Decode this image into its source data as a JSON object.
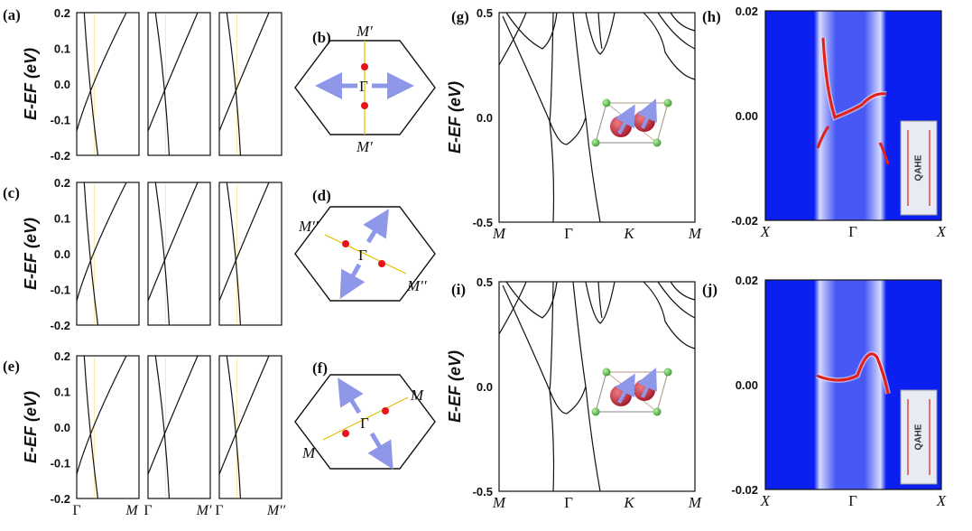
{
  "panel_labels": [
    "(a)",
    "(b)",
    "(c)",
    "(d)",
    "(e)",
    "(f)",
    "(g)",
    "(h)",
    "(i)",
    "(j)"
  ],
  "colors": {
    "band": "#111111",
    "bz_arrow": "#8f98e8",
    "weyl_point": "#e8121b",
    "kpath": "#e0c000",
    "surface_bg": "#0b1ff0",
    "edge_state": "#e0201a",
    "atom_red": "#c22535",
    "atom_green": "#5ec84a"
  },
  "brillouin_zones": [
    {
      "panel": "(b)",
      "center_label": "Γ",
      "k_labels": [
        "M′",
        "M′"
      ]
    },
    {
      "panel": "(d)",
      "center_label": "Γ",
      "k_labels": [
        "M′′",
        "M′′"
      ]
    },
    {
      "panel": "(f)",
      "center_label": "Γ",
      "k_labels": [
        "M",
        "M"
      ]
    }
  ],
  "surface_legend": {
    "text": "QAHE"
  },
  "chart_data": [
    {
      "type": "line",
      "panel": "(a)",
      "ylabel": "E-EF (eV)",
      "ylim": [
        -0.2,
        0.2
      ],
      "yticks": [
        "0.2",
        "0.1",
        "0.0",
        "-0.1",
        "-0.2"
      ],
      "xticks": [],
      "subplots": 3
    },
    {
      "type": "line",
      "panel": "(c)",
      "ylabel": "E-EF (eV)",
      "ylim": [
        -0.2,
        0.2
      ],
      "yticks": [
        "0.2",
        "0.1",
        "0.0",
        "-0.1",
        "-0.2"
      ],
      "xticks": [],
      "subplots": 3
    },
    {
      "type": "line",
      "panel": "(e)",
      "ylabel": "E-EF (eV)",
      "ylim": [
        -0.2,
        0.2
      ],
      "yticks": [
        "0.2",
        "0.1",
        "0.0",
        "-0.1",
        "-0.2"
      ],
      "xticks": [
        "Γ",
        "M",
        "Γ",
        "M′",
        "Γ",
        "M′′"
      ],
      "subplots": 3
    },
    {
      "type": "line",
      "panel": "(g)",
      "ylabel": "E-EF (eV)",
      "ylim": [
        -0.5,
        0.5
      ],
      "yticks": [
        "0.5",
        "0.0",
        "-0.5"
      ],
      "xticks": [
        "M",
        "Γ",
        "K",
        "M"
      ]
    },
    {
      "type": "line",
      "panel": "(i)",
      "ylabel": "E-EF (eV)",
      "ylim": [
        -0.5,
        0.5
      ],
      "yticks": [
        "0.5",
        "0.0",
        "-0.5"
      ],
      "xticks": [
        "M",
        "Γ",
        "K",
        "M"
      ]
    },
    {
      "type": "heatmap",
      "panel": "(h)",
      "ylim": [
        -0.02,
        0.02
      ],
      "yticks": [
        "0.02",
        "0.00",
        "-0.02"
      ],
      "xticks": [
        "X",
        "Γ",
        "X"
      ]
    },
    {
      "type": "heatmap",
      "panel": "(j)",
      "ylim": [
        -0.02,
        0.02
      ],
      "yticks": [
        "0.02",
        "0.00",
        "-0.02"
      ],
      "xticks": [
        "X",
        "Γ",
        "X"
      ]
    }
  ]
}
